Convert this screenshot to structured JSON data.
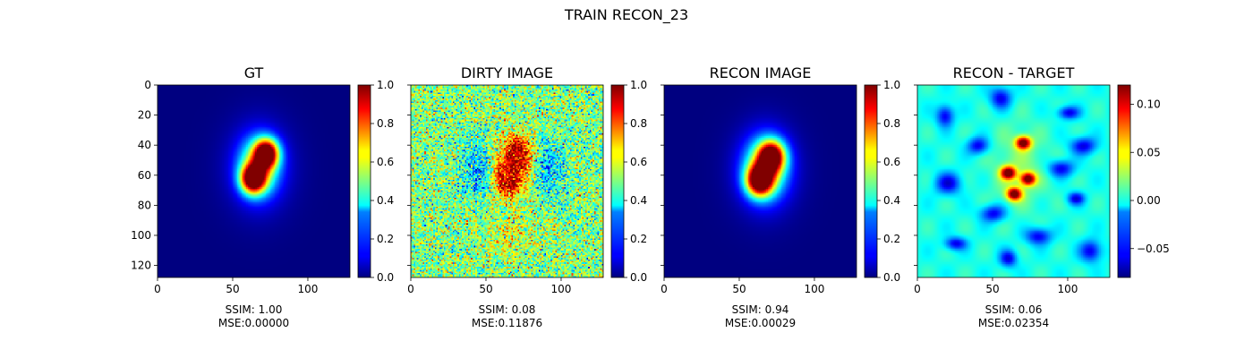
{
  "figure": {
    "title": "TRAIN RECON_23"
  },
  "colormap": "jet",
  "chart_data": [
    {
      "type": "heatmap",
      "title": "GT",
      "image": "ground-truth",
      "extent": [
        0,
        128
      ],
      "xticks": [
        0,
        50,
        100
      ],
      "yticks": [
        0,
        20,
        40,
        60,
        80,
        100,
        120
      ],
      "show_yticklabels": true,
      "colorbar": {
        "range": [
          0.0,
          1.0
        ],
        "ticks": [
          "0.0",
          "0.2",
          "0.4",
          "0.6",
          "0.8",
          "1.0"
        ]
      },
      "caption": [
        "SSIM: 1.00",
        "MSE:0.00000"
      ]
    },
    {
      "type": "heatmap",
      "title": "DIRTY IMAGE",
      "image": "dirty",
      "extent": [
        0,
        128
      ],
      "xticks": [
        0,
        50,
        100
      ],
      "yticks": [
        0,
        20,
        40,
        60,
        80,
        100,
        120
      ],
      "show_yticklabels": false,
      "colorbar": {
        "range": [
          0.0,
          1.0
        ],
        "ticks": [
          "0.0",
          "0.2",
          "0.4",
          "0.6",
          "0.8",
          "1.0"
        ]
      },
      "caption": [
        "SSIM: 0.08",
        "MSE:0.11876"
      ]
    },
    {
      "type": "heatmap",
      "title": "RECON IMAGE",
      "image": "reconstruction",
      "extent": [
        0,
        128
      ],
      "xticks": [
        0,
        50,
        100
      ],
      "yticks": [
        0,
        20,
        40,
        60,
        80,
        100,
        120
      ],
      "show_yticklabels": false,
      "colorbar": {
        "range": [
          0.0,
          1.0
        ],
        "ticks": [
          "0.0",
          "0.2",
          "0.4",
          "0.6",
          "0.8",
          "1.0"
        ]
      },
      "caption": [
        "SSIM: 0.94",
        "MSE:0.00029"
      ]
    },
    {
      "type": "heatmap",
      "title": "RECON - TARGET",
      "image": "difference",
      "extent": [
        0,
        128
      ],
      "xticks": [
        0,
        50,
        100
      ],
      "yticks": [
        0,
        20,
        40,
        60,
        80,
        100,
        120
      ],
      "show_yticklabels": false,
      "colorbar": {
        "range": [
          -0.08,
          0.12
        ],
        "ticks": [
          "0.10",
          "0.05",
          "0.00",
          "−0.05"
        ],
        "tick_values": [
          0.1,
          0.05,
          0.0,
          -0.05
        ]
      },
      "caption": [
        "SSIM: 0.06",
        "MSE:0.02354"
      ]
    }
  ]
}
